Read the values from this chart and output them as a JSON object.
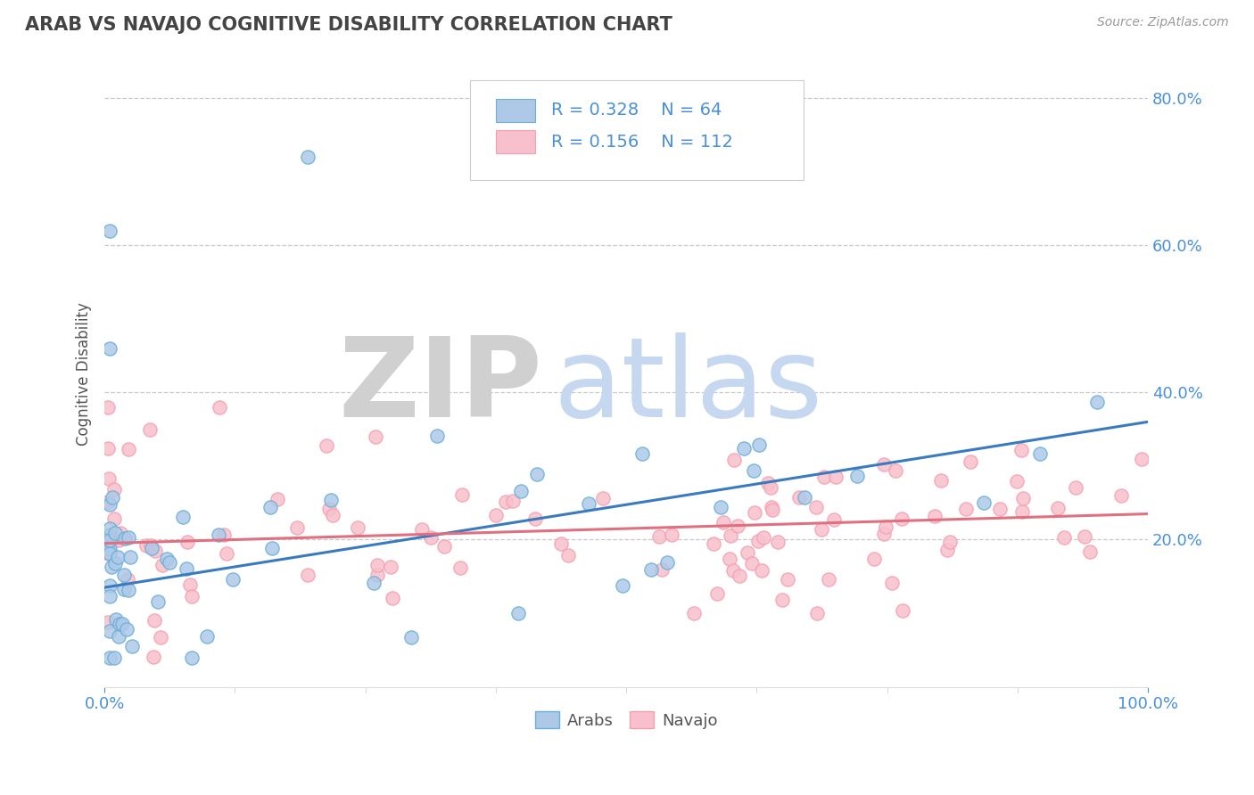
{
  "title": "ARAB VS NAVAJO COGNITIVE DISABILITY CORRELATION CHART",
  "source": "Source: ZipAtlas.com",
  "ylabel": "Cognitive Disability",
  "xlim": [
    0,
    1.0
  ],
  "ylim": [
    0,
    0.85
  ],
  "ytick_vals": [
    0.2,
    0.4,
    0.6,
    0.8
  ],
  "ytick_labels": [
    "20.0%",
    "40.0%",
    "60.0%",
    "80.0%"
  ],
  "xtick_vals": [
    0.0,
    1.0
  ],
  "xtick_labels": [
    "0.0%",
    "100.0%"
  ],
  "arab_fill_color": "#aec9e8",
  "arab_edge_color": "#6baed6",
  "navajo_fill_color": "#f7c0cc",
  "navajo_edge_color": "#f4a0b0",
  "arab_line_color": "#3a7bbf",
  "navajo_line_color": "#e07080",
  "arab_R": 0.328,
  "arab_N": 64,
  "navajo_R": 0.156,
  "navajo_N": 112,
  "legend_text_color": "#4a90d9",
  "title_color": "#444444",
  "axis_label_color": "#555555",
  "tick_label_color": "#4a90d9",
  "source_color": "#999999",
  "background_color": "#ffffff",
  "grid_color": "#c8c8c8",
  "watermark_ZIP_color": "#d0d0d0",
  "watermark_atlas_color": "#c5d8f0",
  "arab_line_start_y": 0.135,
  "arab_line_end_y": 0.36,
  "navajo_line_start_y": 0.195,
  "navajo_line_end_y": 0.235
}
